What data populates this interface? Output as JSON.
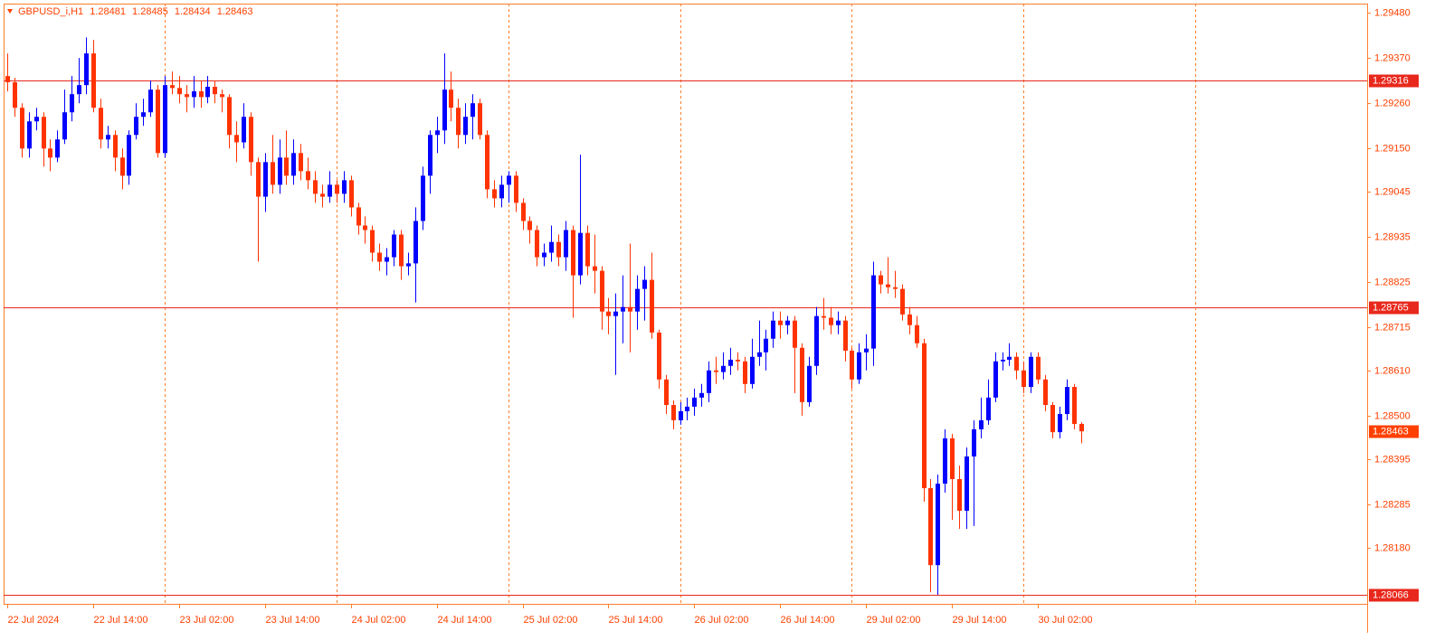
{
  "chart_data": {
    "type": "candlestick",
    "symbol": "GBPUSD_i,H1",
    "up_color": "#0000ff",
    "down_color": "#ff3300",
    "open": [
      1.29326,
      1.29311,
      1.29249,
      1.2915,
      1.29216,
      1.29227,
      1.2915,
      1.29128,
      1.29172,
      1.29238,
      1.29282,
      1.29304,
      1.29381,
      1.29249,
      1.29172,
      1.29183,
      1.29128,
      1.29084,
      1.29183,
      1.29227,
      1.29238,
      1.29293,
      1.29139,
      1.29304,
      1.29297,
      1.29282,
      1.29275,
      1.29289,
      1.29275,
      1.293,
      1.29282,
      1.29275,
      1.29183,
      1.29165,
      1.29227,
      1.29117,
      1.29033,
      1.29117,
      1.29062,
      1.29128,
      1.29084,
      1.29139,
      1.29095,
      1.29073,
      1.2904,
      1.29033,
      1.29062,
      1.2904,
      1.29073,
      1.29007,
      1.28963,
      1.28952,
      1.28897,
      1.28875,
      1.28886,
      1.28941,
      1.28864,
      1.28871,
      1.28974,
      1.29084,
      1.29183,
      1.29194,
      1.29293,
      1.29249,
      1.29183,
      1.29227,
      1.2926,
      1.29183,
      1.29051,
      1.29029,
      1.29062,
      1.29084,
      1.29018,
      1.28974,
      1.28952,
      1.28886,
      1.28897,
      1.28923,
      1.28886,
      1.28952,
      1.28842,
      1.28945,
      1.28864,
      1.28853,
      1.28754,
      1.28743,
      1.28754,
      1.28765,
      1.28754,
      1.28809,
      1.28831,
      1.28703,
      1.28589,
      1.28527,
      1.2849,
      1.28512,
      1.28523,
      1.28545,
      1.28556,
      1.28611,
      1.28607,
      1.28622,
      1.28637,
      1.28633,
      1.28578,
      1.28644,
      1.28655,
      1.28688,
      1.28732,
      1.28721,
      1.28732,
      1.28666,
      1.28534,
      1.28622,
      1.28743,
      1.28739,
      1.28721,
      1.28732,
      1.28659,
      1.28589,
      1.28655,
      1.28664,
      1.28842,
      1.2882,
      1.28813,
      1.28809,
      1.28747,
      1.28721,
      1.28677,
      1.28325,
      1.28138,
      1.28336,
      1.28446,
      1.28347,
      1.2827,
      1.28402,
      1.28468,
      1.2849,
      1.28545,
      1.28633,
      1.28637,
      1.28644,
      1.28611,
      1.28571,
      1.28644,
      1.28589,
      1.28527,
      1.28461,
      1.28505,
      1.28571,
      1.28481
    ],
    "high": [
      1.29381,
      1.29322,
      1.2926,
      1.29238,
      1.29249,
      1.29238,
      1.29172,
      1.29194,
      1.29293,
      1.29326,
      1.2937,
      1.2942,
      1.29414,
      1.29271,
      1.29205,
      1.29194,
      1.2915,
      1.29194,
      1.2926,
      1.29271,
      1.29315,
      1.29304,
      1.29326,
      1.29337,
      1.29326,
      1.29304,
      1.29326,
      1.29315,
      1.29326,
      1.29315,
      1.29293,
      1.29282,
      1.29216,
      1.2926,
      1.29238,
      1.29128,
      1.29139,
      1.29183,
      1.29172,
      1.29194,
      1.29172,
      1.29161,
      1.29128,
      1.29095,
      1.29062,
      1.29095,
      1.29073,
      1.29095,
      1.29084,
      1.29018,
      1.28985,
      1.28963,
      1.28919,
      1.28908,
      1.28952,
      1.28952,
      1.28897,
      1.29007,
      1.29106,
      1.29194,
      1.29227,
      1.29381,
      1.29337,
      1.29271,
      1.2926,
      1.29282,
      1.29271,
      1.29194,
      1.29073,
      1.29084,
      1.29095,
      1.29095,
      1.29029,
      1.28985,
      1.28963,
      1.28919,
      1.28963,
      1.28941,
      1.28974,
      1.28963,
      1.29135,
      1.28963,
      1.28941,
      1.28864,
      1.28787,
      1.28798,
      1.28842,
      1.28919,
      1.28842,
      1.28864,
      1.28897,
      1.2871,
      1.286,
      1.28538,
      1.28534,
      1.28545,
      1.28567,
      1.28578,
      1.28633,
      1.28644,
      1.28655,
      1.28666,
      1.28655,
      1.28644,
      1.28688,
      1.28732,
      1.2871,
      1.28754,
      1.28754,
      1.28743,
      1.28743,
      1.28677,
      1.28644,
      1.28765,
      1.28787,
      1.28765,
      1.28754,
      1.28743,
      1.28666,
      1.28677,
      1.28699,
      1.28875,
      1.28853,
      1.28886,
      1.28853,
      1.2882,
      1.28765,
      1.28743,
      1.28688,
      1.28347,
      1.28358,
      1.28468,
      1.28457,
      1.2838,
      1.28424,
      1.2849,
      1.28545,
      1.28589,
      1.28655,
      1.28655,
      1.28677,
      1.28655,
      1.28633,
      1.28655,
      1.28655,
      1.286,
      1.28534,
      1.28523,
      1.28589,
      1.28578,
      1.28485
    ],
    "low": [
      1.29289,
      1.29227,
      1.29128,
      1.29128,
      1.29194,
      1.29106,
      1.29095,
      1.29117,
      1.29161,
      1.29216,
      1.2926,
      1.29282,
      1.29238,
      1.2915,
      1.2915,
      1.29095,
      1.29051,
      1.29062,
      1.29172,
      1.29205,
      1.29227,
      1.29128,
      1.29128,
      1.29282,
      1.2926,
      1.29238,
      1.29249,
      1.29249,
      1.2926,
      1.2926,
      1.29238,
      1.2915,
      1.29117,
      1.2915,
      1.29084,
      1.28875,
      1.28996,
      1.2904,
      1.2904,
      1.29062,
      1.29062,
      1.29073,
      1.29051,
      1.29018,
      1.29007,
      1.29018,
      1.29018,
      1.29018,
      1.28985,
      1.28941,
      1.28919,
      1.28875,
      1.28853,
      1.28842,
      1.28864,
      1.28831,
      1.28842,
      1.28776,
      1.28952,
      1.2904,
      1.29139,
      1.29161,
      1.29216,
      1.2915,
      1.29161,
      1.29172,
      1.29172,
      1.29029,
      1.29007,
      1.29007,
      1.29018,
      1.28996,
      1.28952,
      1.28919,
      1.28864,
      1.28864,
      1.28875,
      1.28864,
      1.28853,
      1.28739,
      1.2882,
      1.28842,
      1.28798,
      1.2871,
      1.28699,
      1.286,
      1.28677,
      1.28655,
      1.2871,
      1.28732,
      1.28688,
      1.28567,
      1.28505,
      1.28468,
      1.28479,
      1.2849,
      1.28501,
      1.28523,
      1.28534,
      1.28578,
      1.28589,
      1.286,
      1.28611,
      1.28556,
      1.28567,
      1.28622,
      1.28611,
      1.28666,
      1.28688,
      1.28699,
      1.28556,
      1.28501,
      1.28523,
      1.286,
      1.2871,
      1.28699,
      1.28699,
      1.28633,
      1.28567,
      1.28578,
      1.28611,
      1.28622,
      1.28798,
      1.28798,
      1.28787,
      1.28732,
      1.28699,
      1.28666,
      1.28292,
      1.28072,
      1.28066,
      1.28314,
      1.28248,
      1.28226,
      1.28226,
      1.28233,
      1.28446,
      1.28479,
      1.28534,
      1.28611,
      1.28622,
      1.28589,
      1.28556,
      1.28556,
      1.28578,
      1.28512,
      1.28446,
      1.28446,
      1.2849,
      1.28468,
      1.28434
    ],
    "close": [
      1.29311,
      1.29249,
      1.2915,
      1.29216,
      1.29227,
      1.2915,
      1.29128,
      1.29172,
      1.29238,
      1.29282,
      1.29304,
      1.29381,
      1.29249,
      1.29172,
      1.29183,
      1.29128,
      1.29084,
      1.29183,
      1.29227,
      1.29238,
      1.29293,
      1.29139,
      1.29304,
      1.29297,
      1.29282,
      1.29275,
      1.29289,
      1.29275,
      1.293,
      1.29282,
      1.29275,
      1.29183,
      1.29165,
      1.29227,
      1.29117,
      1.29033,
      1.29117,
      1.29062,
      1.29128,
      1.29084,
      1.29139,
      1.29095,
      1.29073,
      1.2904,
      1.29033,
      1.29062,
      1.2904,
      1.29073,
      1.29007,
      1.28963,
      1.28952,
      1.28897,
      1.28875,
      1.28886,
      1.28941,
      1.28864,
      1.28871,
      1.28974,
      1.29084,
      1.29183,
      1.29194,
      1.29293,
      1.29249,
      1.29183,
      1.29227,
      1.2926,
      1.29183,
      1.29051,
      1.29029,
      1.29062,
      1.29084,
      1.29018,
      1.28974,
      1.28952,
      1.28886,
      1.28897,
      1.28923,
      1.28886,
      1.28952,
      1.28842,
      1.28945,
      1.28864,
      1.28853,
      1.28754,
      1.28743,
      1.28754,
      1.28765,
      1.28754,
      1.28809,
      1.28831,
      1.28703,
      1.28589,
      1.28527,
      1.2849,
      1.28512,
      1.28523,
      1.28545,
      1.28556,
      1.28611,
      1.28607,
      1.28622,
      1.28637,
      1.28633,
      1.28578,
      1.28644,
      1.28655,
      1.28688,
      1.28732,
      1.28721,
      1.28732,
      1.28666,
      1.28534,
      1.28622,
      1.28743,
      1.28739,
      1.28721,
      1.28732,
      1.28659,
      1.28589,
      1.28655,
      1.28664,
      1.28842,
      1.2882,
      1.28813,
      1.28809,
      1.28747,
      1.28721,
      1.28677,
      1.28325,
      1.28138,
      1.28336,
      1.28446,
      1.28347,
      1.2827,
      1.28402,
      1.28468,
      1.2849,
      1.28545,
      1.28633,
      1.28637,
      1.28644,
      1.28611,
      1.28571,
      1.28644,
      1.28589,
      1.28527,
      1.28461,
      1.28505,
      1.28571,
      1.28481,
      1.28463
    ],
    "xlim": [
      -0.5,
      190
    ],
    "xticks": [
      {
        "value": 0,
        "label": "22 Jul 2024"
      },
      {
        "value": 12,
        "label": "22 Jul 14:00"
      },
      {
        "value": 24,
        "label": "23 Jul 02:00"
      },
      {
        "value": 36,
        "label": "23 Jul 14:00"
      },
      {
        "value": 48,
        "label": "24 Jul 02:00"
      },
      {
        "value": 60,
        "label": "24 Jul 14:00"
      },
      {
        "value": 72,
        "label": "25 Jul 02:00"
      },
      {
        "value": 84,
        "label": "25 Jul 14:00"
      },
      {
        "value": 96,
        "label": "26 Jul 02:00"
      },
      {
        "value": 108,
        "label": "26 Jul 14:00"
      },
      {
        "value": 120,
        "label": "29 Jul 02:00"
      },
      {
        "value": 132,
        "label": "29 Jul 14:00"
      },
      {
        "value": 144,
        "label": "30 Jul 02:00"
      }
    ],
    "separators": [
      22,
      46,
      70,
      94,
      118,
      142,
      166
    ],
    "ylim": [
      1.28044,
      1.29502
    ],
    "yticks": [
      {
        "value": 1.2948,
        "label": "1.29480"
      },
      {
        "value": 1.2937,
        "label": "1.29370"
      },
      {
        "value": 1.2926,
        "label": "1.29260"
      },
      {
        "value": 1.2915,
        "label": "1.29150"
      },
      1.29045,
      1.28935,
      1.28825,
      1.28715,
      {
        "value": 1.2861,
        "label": "1.28610"
      },
      {
        "value": 1.285,
        "label": "1.28500"
      },
      1.28395,
      1.28285,
      {
        "value": 1.2818,
        "label": "1.28180"
      }
    ],
    "hlines": [
      1.29316,
      1.28765,
      1.28066
    ],
    "hline_color": "#e8281c"
  }
}
